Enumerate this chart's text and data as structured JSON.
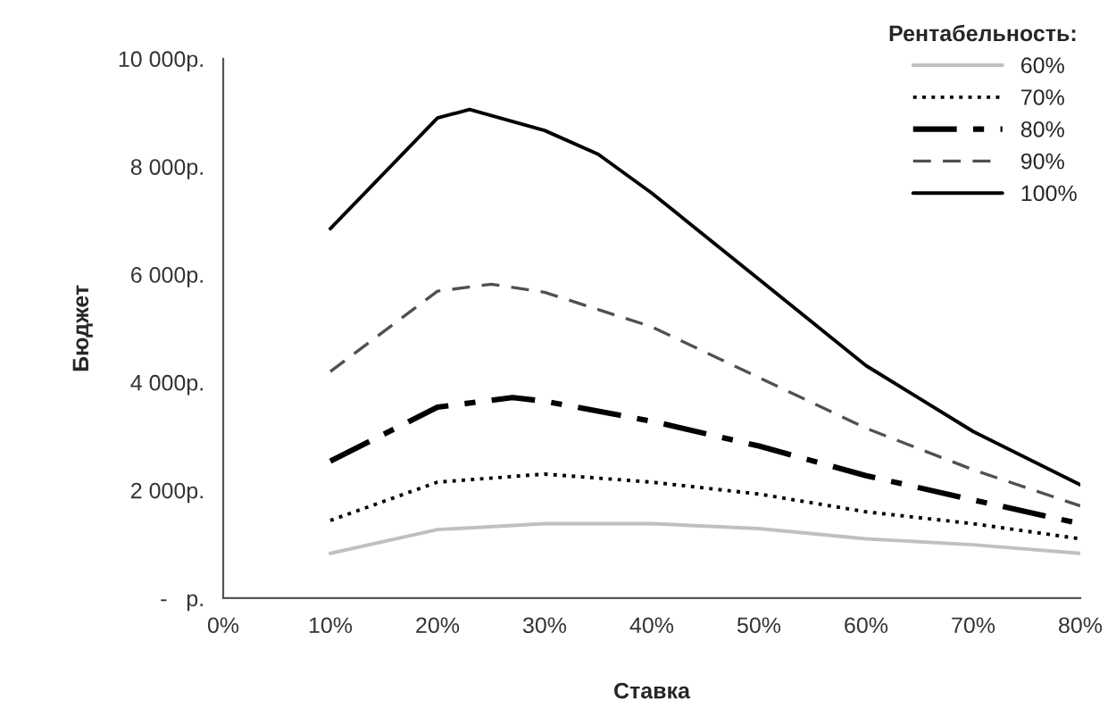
{
  "chart_data": {
    "type": "line",
    "xlabel": "Ставка",
    "ylabel": "Бюджет",
    "legend_title": "Рентабельность:",
    "xlim": [
      0,
      80
    ],
    "xticks": [
      {
        "value": 0,
        "label": "0%"
      },
      {
        "value": 10,
        "label": "10%"
      },
      {
        "value": 20,
        "label": "20%"
      },
      {
        "value": 30,
        "label": "30%"
      },
      {
        "value": 40,
        "label": "40%"
      },
      {
        "value": 50,
        "label": "50%"
      },
      {
        "value": 60,
        "label": "60%"
      },
      {
        "value": 70,
        "label": "70%"
      },
      {
        "value": 80,
        "label": "80%"
      }
    ],
    "ylim": [
      0,
      10000
    ],
    "yticks": [
      {
        "value": 0,
        "label": "-   р."
      },
      {
        "value": 2000,
        "label": "2 000р."
      },
      {
        "value": 4000,
        "label": "4 000р."
      },
      {
        "value": 6000,
        "label": "6 000р."
      },
      {
        "value": 8000,
        "label": "8 000р."
      },
      {
        "value": 10000,
        "label": "10 000р."
      }
    ],
    "grid": false,
    "legend": "top right",
    "marker": "none",
    "series": [
      {
        "name": "60%",
        "color": "#c0c0c0",
        "line_style": "solid",
        "x": [
          10,
          20,
          30,
          40,
          50,
          60,
          70,
          80
        ],
        "values": [
          830,
          1270,
          1380,
          1380,
          1290,
          1100,
          990,
          830
        ]
      },
      {
        "name": "70%",
        "color": "#000000",
        "line_style": "dotted",
        "x": [
          10,
          20,
          30,
          40,
          50,
          60,
          70,
          80
        ],
        "values": [
          1440,
          2150,
          2300,
          2150,
          1930,
          1600,
          1380,
          1100
        ]
      },
      {
        "name": "80%",
        "color": "#000000",
        "line_style": "dashdot",
        "x": [
          10,
          20,
          27,
          30,
          40,
          50,
          60,
          70,
          80
        ],
        "values": [
          2540,
          3540,
          3720,
          3650,
          3280,
          2820,
          2270,
          1820,
          1380
        ]
      },
      {
        "name": "90%",
        "color": "#505050",
        "line_style": "dashed",
        "x": [
          10,
          20,
          25,
          30,
          40,
          50,
          60,
          70,
          80
        ],
        "values": [
          4200,
          5690,
          5820,
          5670,
          5030,
          4090,
          3150,
          2380,
          1710
        ]
      },
      {
        "name": "100%",
        "color": "#000000",
        "line_style": "solid",
        "x": [
          10,
          20,
          23,
          30,
          35,
          40,
          50,
          60,
          70,
          80
        ],
        "values": [
          6850,
          8900,
          9060,
          8670,
          8230,
          7510,
          5910,
          4310,
          3090,
          2100
        ]
      }
    ]
  }
}
